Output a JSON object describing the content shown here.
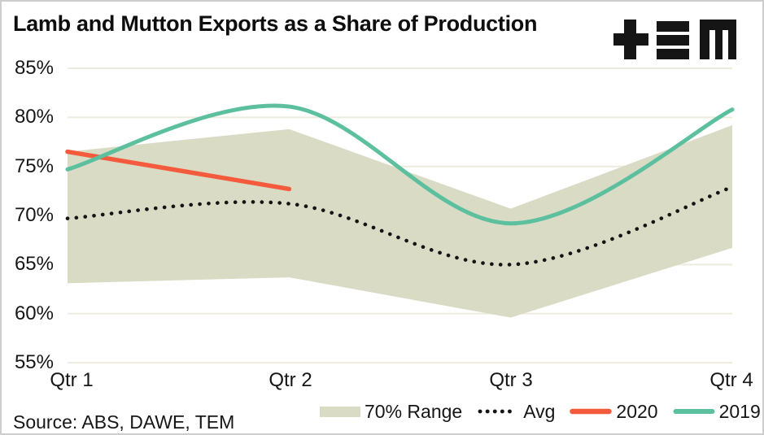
{
  "title": "Lamb and Mutton Exports as a Share of Production",
  "brand_logo": "TEM",
  "source_note": "Source: ABS, DAWE, TEM",
  "colors": {
    "text": "#161616",
    "grid": "#edecdf",
    "band": "#d9dbc4",
    "avg": "#141414",
    "y2020": "#f45b3d",
    "y2019": "#5cc09e",
    "frame_border": "#cdcdcd"
  },
  "chart_data": {
    "type": "line",
    "title": "Lamb and Mutton Exports as a Share of Production",
    "categories": [
      "Qtr 1",
      "Qtr 2",
      "Qtr 3",
      "Qtr 4"
    ],
    "y_ticks": [
      "85%",
      "80%",
      "75%",
      "70%",
      "65%",
      "60%",
      "55%"
    ],
    "y_tick_values": [
      85,
      80,
      75,
      70,
      65,
      60,
      55
    ],
    "ylim": [
      55,
      85
    ],
    "unit": "%",
    "grid": true,
    "legend_position": "bottom",
    "series": [
      {
        "name": "70% Range",
        "type": "band",
        "upper": [
          76.5,
          78.8,
          70.7,
          79.2
        ],
        "lower": [
          63.1,
          63.7,
          59.6,
          66.7
        ],
        "color": "#d9dbc4"
      },
      {
        "name": "Avg",
        "type": "dotted-line",
        "values": [
          69.7,
          71.2,
          65.0,
          72.9
        ],
        "color": "#141414"
      },
      {
        "name": "2020",
        "type": "line",
        "values": [
          76.5,
          72.7,
          null,
          null
        ],
        "color": "#f45b3d"
      },
      {
        "name": "2019",
        "type": "smooth-line",
        "values": [
          74.7,
          81.1,
          69.2,
          80.8
        ],
        "color": "#5cc09e"
      }
    ]
  }
}
